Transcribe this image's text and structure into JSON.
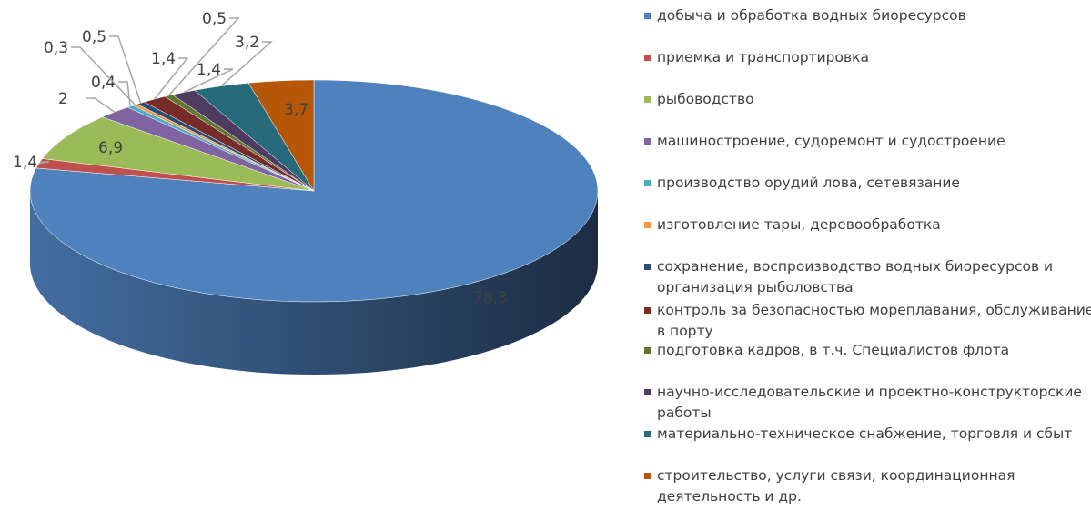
{
  "chart_data": {
    "type": "pie3d",
    "categories": [
      "добыча и обработка водных биоресурсов",
      "приемка и транспортировка",
      "рыбоводство",
      "машиностроение, судоремонт и судостроение",
      "производство орудий лова, сетевязание",
      "изготовление тары, деревообработка",
      "сохранение, воспроизводство водных биоресурсов и организация рыболовства",
      "контроль за безопасностью мореплавания, обслуживание в порту",
      "подготовка кадров, в т.ч. Специалистов флота",
      "научно-исследовательские и проектно-конструкторские работы",
      "материально-техническое снабжение, торговля и сбыт",
      "строительство, услуги связи, координационная деятельность и др."
    ],
    "values": [
      78.3,
      1.4,
      6.9,
      2,
      0.4,
      0.3,
      0.5,
      1.4,
      0.5,
      1.4,
      3.2,
      3.7
    ],
    "value_labels": [
      "78,3",
      "1,4",
      "6,9",
      "2",
      "0,4",
      "0,3",
      "0,5",
      "1,4",
      "0,5",
      "1,4",
      "3,2",
      "3,7"
    ],
    "colors": [
      "#4f81bd",
      "#c0504d",
      "#9bbb59",
      "#8064a2",
      "#4bacc6",
      "#f79646",
      "#2c4d75",
      "#772c2a",
      "#5f7530",
      "#4d3b62",
      "#276a7c",
      "#b65708"
    ],
    "legend": "right"
  }
}
